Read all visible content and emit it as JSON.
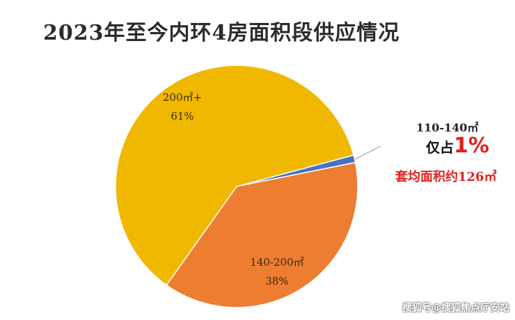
{
  "title": "2023年至今内环4房面积段供应情况",
  "chart_data": {
    "type": "pie",
    "title": "2023年至今内环4房面积段供应情况",
    "slices": [
      {
        "key": "s110",
        "label": "110-140㎡",
        "value": 1,
        "value_label": "1%",
        "color": "#4472c4"
      },
      {
        "key": "s140",
        "label": "140-200㎡",
        "value": 38,
        "value_label": "38%",
        "color": "#ed7d31"
      },
      {
        "key": "s200",
        "label": "200㎡+",
        "value": 61,
        "value_label": "61%",
        "color": "#f0b800"
      }
    ]
  },
  "callout": {
    "range": "110-140㎡",
    "share_prefix": "仅占",
    "share_value": "1%",
    "avg_area": "套均面积约126㎡"
  },
  "watermark": "搜狐号@搜狐焦点厅安站"
}
